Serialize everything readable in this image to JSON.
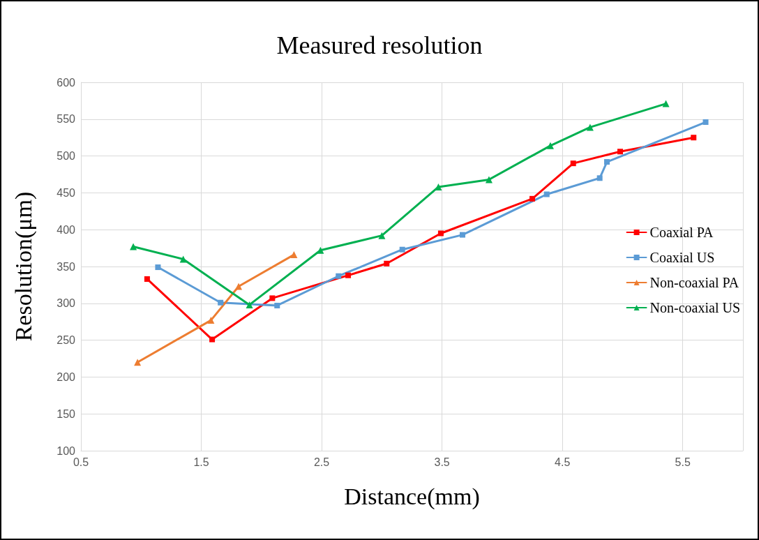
{
  "chart_data": {
    "type": "line",
    "title": "Measured resolution",
    "xlabel": "Distance(mm)",
    "ylabel": "Resolution(μm)",
    "xlim": [
      0.5,
      6
    ],
    "xticks": [
      0.5,
      1.5,
      2.5,
      3.5,
      4.5,
      5.5
    ],
    "ylim": [
      100,
      600
    ],
    "yticks": [
      100,
      150,
      200,
      250,
      300,
      350,
      400,
      450,
      500,
      550,
      600
    ],
    "grid": true,
    "legend": "right",
    "line_style": "solid",
    "series": [
      {
        "name": "Coaxial PA",
        "color": "#ff0000",
        "marker": "square",
        "x": [
          1.05,
          1.59,
          2.09,
          2.72,
          3.04,
          3.49,
          4.25,
          4.59,
          4.98,
          5.59
        ],
        "values": [
          333,
          251,
          307,
          338,
          354,
          395,
          442,
          490,
          506,
          525
        ]
      },
      {
        "name": "Coaxial US",
        "color": "#5b9bd5",
        "marker": "square",
        "x": [
          1.14,
          1.66,
          2.13,
          2.64,
          3.17,
          3.67,
          4.37,
          4.81,
          4.87,
          5.69
        ],
        "values": [
          349,
          301,
          297,
          337,
          373,
          393,
          448,
          470,
          492,
          546
        ]
      },
      {
        "name": "Non-coaxial PA",
        "color": "#ed7d31",
        "marker": "triangle",
        "x": [
          0.97,
          1.58,
          1.81,
          2.27
        ],
        "values": [
          220,
          277,
          323,
          366
        ]
      },
      {
        "name": "Non-coaxial US",
        "color": "#00b050",
        "marker": "triangle",
        "x": [
          0.935,
          1.35,
          1.9,
          2.49,
          3.0,
          3.47,
          3.89,
          4.4,
          4.73,
          5.36
        ],
        "values": [
          377,
          360,
          298,
          372,
          392,
          458,
          468,
          514,
          539,
          571
        ]
      }
    ]
  }
}
